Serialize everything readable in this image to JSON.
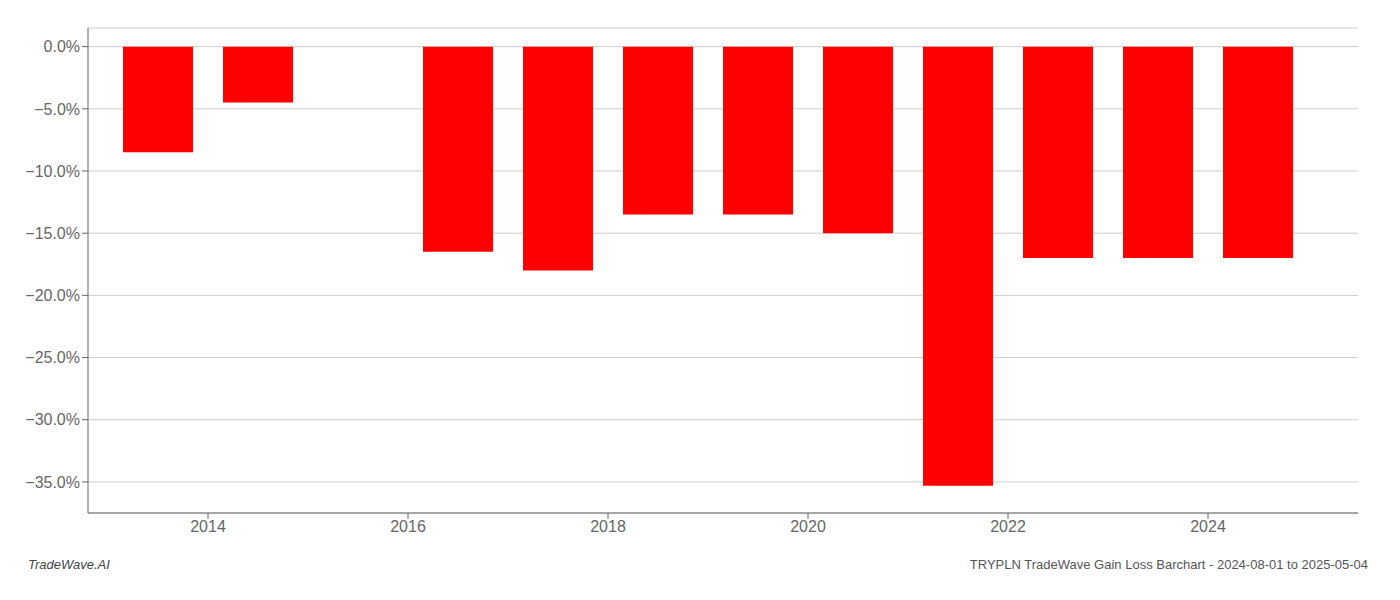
{
  "chart_data": {
    "type": "bar",
    "x": [
      2013.5,
      2014.5,
      2015.5,
      2016.5,
      2017.5,
      2018.5,
      2019.5,
      2020.5,
      2021.5,
      2022.5,
      2023.5,
      2024.5
    ],
    "values": [
      -8.5,
      -4.5,
      0.0,
      -16.5,
      -18.0,
      -13.5,
      -13.5,
      -15.0,
      -35.3,
      -17.0,
      -17.0,
      -17.0
    ],
    "color": "#ff0000",
    "xlim": [
      2012.8,
      2025.5
    ],
    "xticks": [
      2014,
      2016,
      2018,
      2020,
      2022,
      2024
    ],
    "ylim": [
      -37.5,
      1.5
    ],
    "yticks": [
      {
        "value": 0.0,
        "label": "0.0%"
      },
      {
        "value": -5.0,
        "label": "−5.0%"
      },
      {
        "value": -10.0,
        "label": "−10.0%"
      },
      {
        "value": -15.0,
        "label": "−15.0%"
      },
      {
        "value": -20.0,
        "label": "−20.0%"
      },
      {
        "value": -25.0,
        "label": "−25.0%"
      },
      {
        "value": -30.0,
        "label": "−30.0%"
      },
      {
        "value": -35.0,
        "label": "−35.0%"
      }
    ],
    "grid": true,
    "annotations": [
      "TradeWave.AI",
      "TRYPLN TradeWave Gain Loss Barchart - 2024-08-01 to 2025-05-04"
    ]
  }
}
